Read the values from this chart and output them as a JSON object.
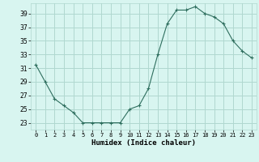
{
  "x": [
    0,
    1,
    2,
    3,
    4,
    5,
    6,
    7,
    8,
    9,
    10,
    11,
    12,
    13,
    14,
    15,
    16,
    17,
    18,
    19,
    20,
    21,
    22,
    23
  ],
  "y": [
    31.5,
    29,
    26.5,
    25.5,
    24.5,
    23,
    23,
    23,
    23,
    23,
    25,
    25.5,
    28,
    33,
    37.5,
    39.5,
    39.5,
    40,
    39,
    38.5,
    37.5,
    35,
    33.5,
    32.5
  ],
  "line_color": "#2e6e5e",
  "marker": "+",
  "bg_color": "#d8f5f0",
  "grid_color": "#b0d8d0",
  "xlabel": "Humidex (Indice chaleur)",
  "ylabel_ticks": [
    23,
    25,
    27,
    29,
    31,
    33,
    35,
    37,
    39
  ],
  "xlim": [
    -0.5,
    23.5
  ],
  "ylim": [
    22,
    40.5
  ]
}
